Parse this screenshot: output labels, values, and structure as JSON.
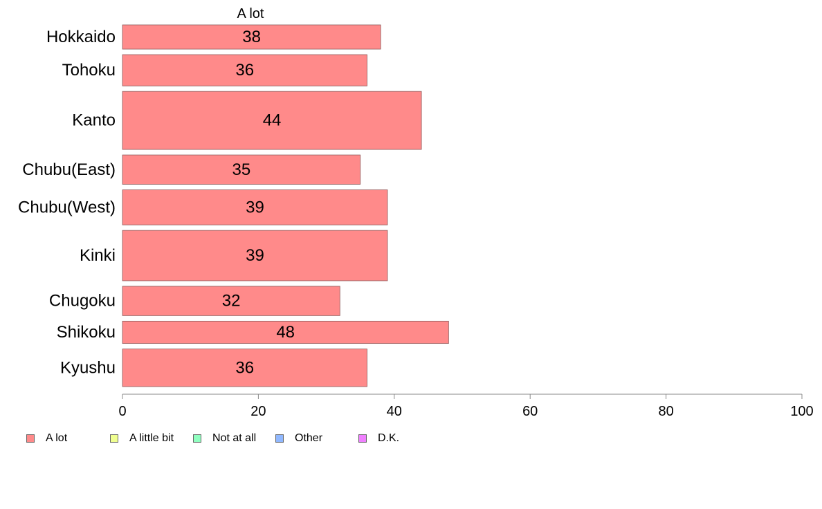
{
  "chart_data": {
    "type": "bar",
    "orientation": "horizontal",
    "stacked": true,
    "title": "A lot",
    "categories": [
      "Hokkaido",
      "Tohoku",
      "Kanto",
      "Chubu(East)",
      "Chubu(West)",
      "Kinki",
      "Chugoku",
      "Shikoku",
      "Kyushu"
    ],
    "category_weights": [
      38,
      49,
      91,
      46,
      55,
      79,
      46,
      35,
      59
    ],
    "series": [
      {
        "name": "A lot",
        "color": "#ff8a8a",
        "values": [
          38,
          36,
          44,
          35,
          39,
          39,
          32,
          48,
          36
        ],
        "data_labels": [
          "38",
          "36",
          "44",
          "35",
          "39",
          "39",
          "32",
          "48",
          "36"
        ]
      }
    ],
    "xlim": [
      0,
      100
    ],
    "xticks": [
      0,
      20,
      40,
      60,
      80,
      100
    ],
    "xtick_labels": [
      "0",
      "20",
      "40",
      "60",
      "80",
      "100"
    ],
    "grid": false,
    "legend_position": "bottom",
    "legend": [
      {
        "label": "A lot",
        "color": "#ff8a8a"
      },
      {
        "label": "A little bit",
        "color": "#f0ff90"
      },
      {
        "label": "Not at all",
        "color": "#90ffc0"
      },
      {
        "label": "Other",
        "color": "#90b8ff"
      },
      {
        "label": "D.K.",
        "color": "#f080ff"
      }
    ]
  }
}
